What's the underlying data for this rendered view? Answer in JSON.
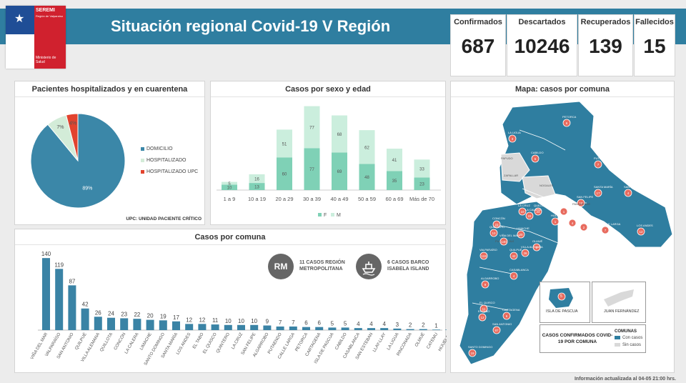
{
  "header": {
    "title": "Situación regional Covid-19 V Región",
    "logo": {
      "seremi": "SEREMI",
      "region": "Región de Valparaíso",
      "ministerio": "Ministerio de Salud"
    }
  },
  "kpis": [
    {
      "label": "Confirmados",
      "value": "687"
    },
    {
      "label": "Descartados",
      "value": "10246"
    },
    {
      "label": "Recuperados",
      "value": "139"
    },
    {
      "label": "Fallecidos",
      "value": "15"
    }
  ],
  "hospital_panel": {
    "title": "Pacientes hospitalizados  y en cuarentena",
    "footnote": "UPC: UNIDAD PACIENTE CRÍTICO"
  },
  "sex_age_panel": {
    "title": "Casos por sexo y edad"
  },
  "comuna_panel": {
    "title": "Casos por comuna",
    "badges": [
      {
        "icon": "RM",
        "text": "11 CASOS REGIÓN METROPOLITANA"
      },
      {
        "icon": "ship",
        "text": "6 CASOS BARCO ISABELA ISLAND"
      }
    ]
  },
  "map_panel": {
    "title": "Mapa: casos por comuna",
    "inset_pascua": "ISLA DE PASCUA",
    "inset_pascua_value": "5",
    "inset_fernandez": "JUAN FERNÁNDEZ",
    "caption": "CASOS CONFIRMADOS COVID-19 POR COMUNA",
    "legend_title": "COMUNAS",
    "legend_items": [
      {
        "label": "Con casos",
        "color": "#2f7ea0"
      },
      {
        "label": "Sin casos",
        "color": "#d9d9d9"
      }
    ],
    "labels": [
      {
        "name": "PETORCA",
        "value": "6"
      },
      {
        "name": "LA LIGUA",
        "value": "3"
      },
      {
        "name": "CABILDO",
        "value": "5"
      },
      {
        "name": "PAPUDO",
        "value": ""
      },
      {
        "name": "ZAPALLAR",
        "value": ""
      },
      {
        "name": "PUTAENDO",
        "value": "7"
      },
      {
        "name": "NOGALES",
        "value": ""
      },
      {
        "name": "SANTA MARÍA",
        "value": "17"
      },
      {
        "name": "SAN FELIPE",
        "value": "10"
      },
      {
        "name": "SAN ESTEBAN",
        "value": "4"
      },
      {
        "name": "LOS ANDES",
        "value": "12"
      },
      {
        "name": "CATEMU",
        "value": "1"
      },
      {
        "name": "PANQUEHUE",
        "value": ""
      },
      {
        "name": "LLAY-LLAY",
        "value": "4"
      },
      {
        "name": "CALLE LARGA",
        "value": "7"
      },
      {
        "name": "RINCONADA",
        "value": "2"
      },
      {
        "name": "QUILLOTA",
        "value": "24"
      },
      {
        "name": "LA CRUZ",
        "value": "10"
      },
      {
        "name": "LA CALERA",
        "value": "22"
      },
      {
        "name": "HIJUELAS",
        "value": "1"
      },
      {
        "name": "CONCÓN",
        "value": "23"
      },
      {
        "name": "QUINTERO",
        "value": "10"
      },
      {
        "name": "PUCHUNCAVÍ",
        "value": ""
      },
      {
        "name": "LIMACHE",
        "value": "20"
      },
      {
        "name": "OLMUÉ",
        "value": "2"
      },
      {
        "name": "VIÑA DEL MAR",
        "value": "140"
      },
      {
        "name": "VALPARAÍSO",
        "value": "119"
      },
      {
        "name": "QUILPUÉ",
        "value": "42"
      },
      {
        "name": "VILLA ALEMANA",
        "value": "26"
      },
      {
        "name": "CASABLANCA",
        "value": "4"
      },
      {
        "name": "ALGARROBO",
        "value": "9"
      },
      {
        "name": "EL QUISCO",
        "value": "11"
      },
      {
        "name": "EL TABO",
        "value": "12"
      },
      {
        "name": "CARTAGENA",
        "value": "6"
      },
      {
        "name": "SAN ANTONIO",
        "value": "87"
      },
      {
        "name": "SANTO DOMINGO",
        "value": "19"
      }
    ]
  },
  "footer": {
    "updated": "Información  actualizada al 04-05 21:00 hrs."
  },
  "chart_data": [
    {
      "type": "pie",
      "title": "Pacientes hospitalizados  y en cuarentena",
      "categories": [
        "DOMICILIO",
        "HOSPITALIZADO",
        "HOSPITALIZADO UPC"
      ],
      "values": [
        89,
        7,
        4
      ],
      "value_labels": [
        "89%",
        "7%",
        "4%"
      ],
      "colors": [
        "#3b87a8",
        "#d3ecd8",
        "#e2432e"
      ],
      "legend": "right"
    },
    {
      "type": "bar",
      "stacked": true,
      "title": "Casos por sexo y edad",
      "categories": [
        "1 a 9",
        "10 a 19",
        "20 a 29",
        "30 a 39",
        "40 a 49",
        "50 a 59",
        "60 a 69",
        "Más de 70"
      ],
      "series": [
        {
          "name": "F",
          "values": [
            10,
            13,
            60,
            77,
            69,
            48,
            35,
            23
          ],
          "color": "#7fd1b6"
        },
        {
          "name": "M",
          "values": [
            5,
            16,
            51,
            77,
            68,
            62,
            41,
            33
          ],
          "color": "#cbeedd"
        }
      ],
      "ylim": [
        0,
        160
      ],
      "legend": "bottom"
    },
    {
      "type": "bar",
      "title": "Casos por comuna",
      "categories": [
        "VIÑA DEL MAR",
        "VALPARAÍSO",
        "SAN ANTONIO",
        "QUILPUÉ",
        "VILLA ALEMANA",
        "QUILLOTA",
        "CONCÓN",
        "LA CALERA",
        "LIMACHE",
        "SANTO DOMINGO",
        "SANTA MARÍA",
        "LOS ANDES",
        "EL TABO",
        "EL QUISCO",
        "QUINTERO",
        "LA CRUZ",
        "SAN FELIPE",
        "ALGARROBO",
        "PUTAENDO",
        "CALLE LARGA",
        "PETORCA",
        "CARTAGENA",
        "ISLA DE PASCUA",
        "CABILDO",
        "CASABLANCA",
        "SAN ESTEBAN",
        "LLAY-LLAY",
        "LA LIGUA",
        "RINCONADA",
        "OLMUÉ",
        "CATEMU",
        "HIJUELAS"
      ],
      "values": [
        140,
        119,
        87,
        42,
        26,
        24,
        23,
        22,
        20,
        19,
        17,
        12,
        12,
        11,
        10,
        10,
        10,
        9,
        7,
        7,
        6,
        6,
        5,
        5,
        4,
        4,
        4,
        3,
        2,
        2,
        1,
        1
      ],
      "color": "#3a83a5",
      "ylim": [
        0,
        150
      ]
    }
  ]
}
